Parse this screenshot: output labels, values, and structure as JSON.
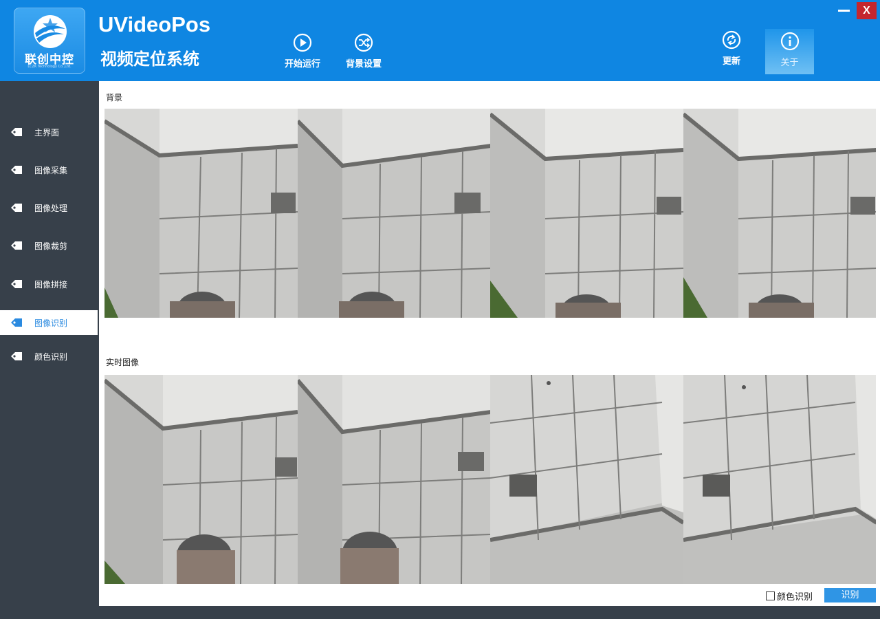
{
  "header": {
    "logo_text": "联创中控",
    "logo_sub": "LCZK Technology Co.,Ltd.",
    "title": "UVideoPos",
    "subtitle": "视频定位系统",
    "toolbar": {
      "start": "开始运行",
      "background_settings": "背景设置",
      "update": "更新",
      "about": "关于"
    },
    "window": {
      "minimize_icon": "minimize-icon",
      "close_label": "X"
    }
  },
  "sidebar": {
    "items": [
      {
        "label": "主界面",
        "active": false
      },
      {
        "label": "图像采集",
        "active": false
      },
      {
        "label": "图像处理",
        "active": false
      },
      {
        "label": "图像裁剪",
        "active": false
      },
      {
        "label": "图像拼接",
        "active": false
      },
      {
        "label": "图像识别",
        "active": true
      },
      {
        "label": "颜色识别",
        "active": false
      }
    ]
  },
  "content": {
    "background_label": "背景",
    "realtime_label": "实时图像",
    "color_recognition_checkbox": "颜色识别",
    "color_recognition_checked": false,
    "recognize_button": "识别"
  },
  "colors": {
    "header_bg": "#0f86e2",
    "sidebar_bg": "#37404a",
    "active_text": "#2a8ae0",
    "button_bg": "#2f95e5",
    "close_bg": "#c4262e"
  }
}
